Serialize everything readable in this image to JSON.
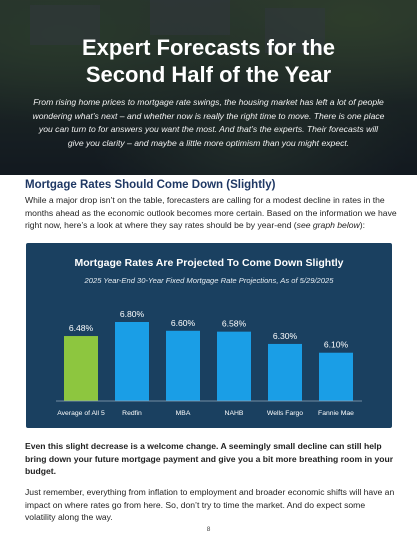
{
  "hero": {
    "title_line1": "Expert Forecasts for the",
    "title_line2": "Second Half of the Year",
    "intro": "From rising home prices to mortgage rate swings, the housing market has left a lot of people wondering what’s next – and whether now is really the right time to move. There is one place you can turn to for answers you want the most. And that’s the experts. Their forecasts will give you clarity – and maybe a little more optimism than you might expect."
  },
  "section": {
    "title": "Mortgage Rates Should Come Down (Slightly)",
    "body_start": "While a major drop isn’t on the table, forecasters are calling for a modest decline in rates in the months ahead as the economic outlook becomes more certain. Based on the information we have right now, here’s a look at where they say rates should be by year-end (",
    "body_em": "see graph below",
    "body_end": "):"
  },
  "chart_data": {
    "type": "bar",
    "title": "Mortgage Rates Are Projected To Come Down Slightly",
    "subtitle": "2025 Year-End 30-Year Fixed Mortgage Rate Projections, As of 5/29/2025",
    "categories": [
      "Average of All 5",
      "Redfin",
      "MBA",
      "NAHB",
      "Wells Fargo",
      "Fannie Mae"
    ],
    "values": [
      6.48,
      6.8,
      6.6,
      6.58,
      6.3,
      6.1
    ],
    "value_labels": [
      "6.48%",
      "6.80%",
      "6.60%",
      "6.58%",
      "6.30%",
      "6.10%"
    ],
    "colors": [
      "#8dc63f",
      "#1a9ee6",
      "#1a9ee6",
      "#1a9ee6",
      "#1a9ee6",
      "#1a9ee6"
    ],
    "background": "#1a4060",
    "grid": false,
    "legend": "none"
  },
  "body": {
    "bold_paragraph": "Even this slight decrease is a welcome change. A seemingly small decline can still help bring down your future mortgage payment and give you a bit more breathing room in your budget.",
    "paragraph": "Just remember, everything from inflation to employment and broader economic shifts will have an impact on where rates go from here. So, don’t try to time the market. And do expect some volatility along the way."
  },
  "page_number": "8"
}
